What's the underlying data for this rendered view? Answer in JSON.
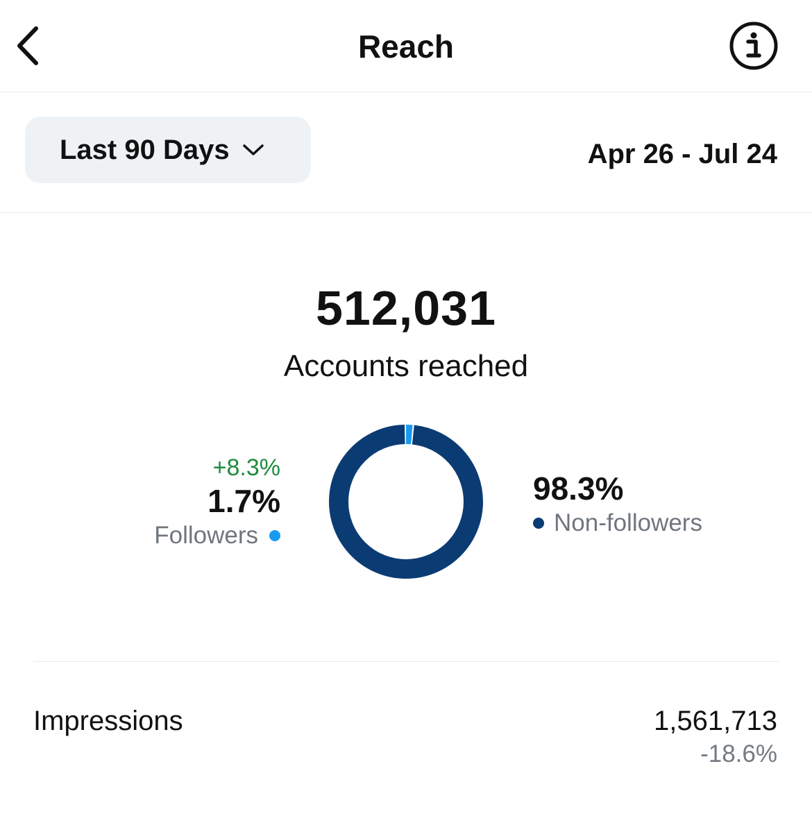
{
  "header": {
    "title": "Reach",
    "back_icon": "chevron-left-icon",
    "info_icon": "info-icon"
  },
  "filter": {
    "range_label": "Last 90 Days",
    "date_range": "Apr 26 - Jul 24"
  },
  "summary": {
    "accounts_reached": "512,031",
    "accounts_label": "Accounts reached"
  },
  "breakdown": {
    "followers": {
      "change": "+8.3%",
      "percent": "1.7%",
      "label": "Followers",
      "color": "#1a9bf0"
    },
    "non_followers": {
      "percent": "98.3%",
      "label": "Non-followers",
      "color": "#0b3b73"
    }
  },
  "chart_data": {
    "type": "pie",
    "categories": [
      "Followers",
      "Non-followers"
    ],
    "values": [
      1.7,
      98.3
    ],
    "colors": [
      "#1a9bf0",
      "#0b3b73"
    ]
  },
  "impressions": {
    "label": "Impressions",
    "value": "1,561,713",
    "change": "-18.6%"
  },
  "colors": {
    "positive_change": "#1e8c3e",
    "muted_text": "#6f767d"
  }
}
